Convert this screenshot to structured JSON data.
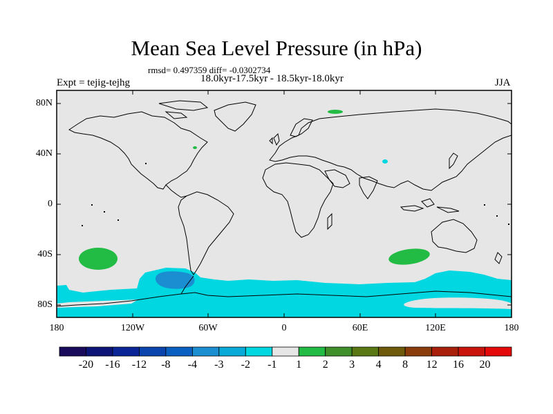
{
  "plot": {
    "title": "Mean Sea Level Pressure (in hPa)",
    "stats": "rmsd= 0.497359 diff= -0.0302734",
    "period": "18.0kyr-17.5kyr - 18.5kyr-18.0kyr",
    "experiment": "Expt = tejig-tejhg",
    "season": "JJA"
  },
  "axes": {
    "lat_labels": [
      "80N",
      "40N",
      "0",
      "40S",
      "80S"
    ],
    "lon_labels": [
      "180",
      "120W",
      "60W",
      "0",
      "60E",
      "120E",
      "180"
    ]
  },
  "colorbar": {
    "labels": [
      "-20",
      "-16",
      "-12",
      "-8",
      "-4",
      "-3",
      "-2",
      "-1",
      "1",
      "2",
      "3",
      "4",
      "8",
      "12",
      "16",
      "20"
    ],
    "colors": [
      "#1a0a5c",
      "#0d1478",
      "#0a2696",
      "#0a44ad",
      "#0a60c0",
      "#1a8ed0",
      "#0aaad8",
      "#00d7e0",
      "#e6e6e6",
      "#22bb44",
      "#3f8f2a",
      "#5a7814",
      "#6e5a0a",
      "#8a3c0a",
      "#a8200a",
      "#c8140a",
      "#e40a0a"
    ]
  },
  "colors": {
    "background_land_ocean": "#e6e6e6",
    "coast": "#000000"
  }
}
